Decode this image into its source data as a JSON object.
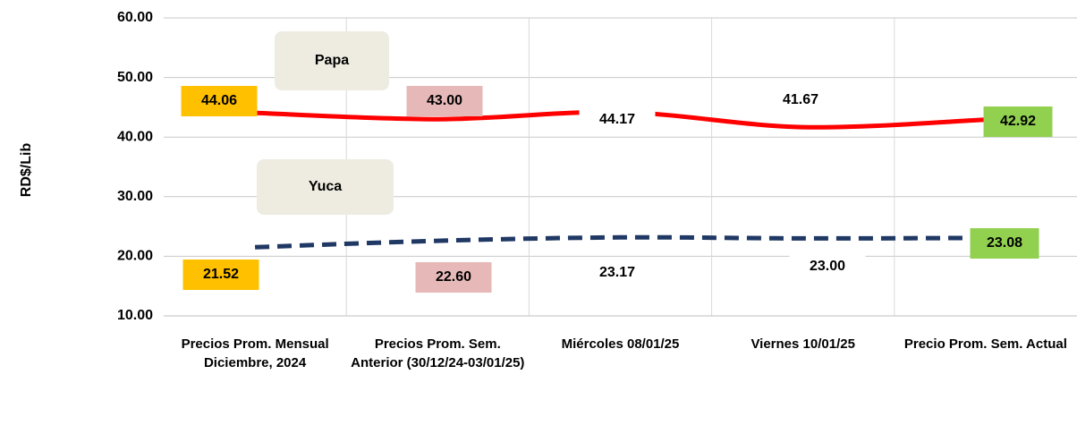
{
  "chart_data": {
    "type": "line",
    "y_label": "RD$/Lib",
    "categories": [
      "Precios Prom. Mensual Diciembre, 2024",
      "Precios Prom. Sem. Anterior (30/12/24-03/01/25)",
      "Miércoles 08/01/25",
      "Viernes 10/01/25",
      "Precio Prom. Sem. Actual"
    ],
    "series": [
      {
        "name": "Papa",
        "color": "#ff0000",
        "dashed": false,
        "values": [
          44.06,
          43.0,
          44.17,
          41.67,
          42.92
        ],
        "value_labels": [
          "44.06",
          "43.00",
          "44.17",
          "41.67",
          "42.92"
        ],
        "label_backgrounds": [
          "#ffc000",
          "#e6b9b8",
          "#ffffff",
          "#ffffff",
          "#92d050"
        ]
      },
      {
        "name": "Yuca",
        "color": "#1f3864",
        "dashed": true,
        "values": [
          21.52,
          22.6,
          23.17,
          23.0,
          23.08
        ],
        "value_labels": [
          "21.52",
          "22.60",
          "23.17",
          "23.00",
          "23.08"
        ],
        "label_backgrounds": [
          "#ffc000",
          "#e6b9b8",
          "#ffffff",
          "#ffffff",
          "#92d050"
        ]
      }
    ],
    "ylim": [
      10,
      60
    ],
    "yticks": [
      {
        "value": 10,
        "label": "10.00"
      },
      {
        "value": 20,
        "label": "20.00"
      },
      {
        "value": 30,
        "label": "30.00"
      },
      {
        "value": 40,
        "label": "40.00"
      },
      {
        "value": 50,
        "label": "50.00"
      },
      {
        "value": 60,
        "label": "60.00"
      }
    ],
    "grid": true
  }
}
